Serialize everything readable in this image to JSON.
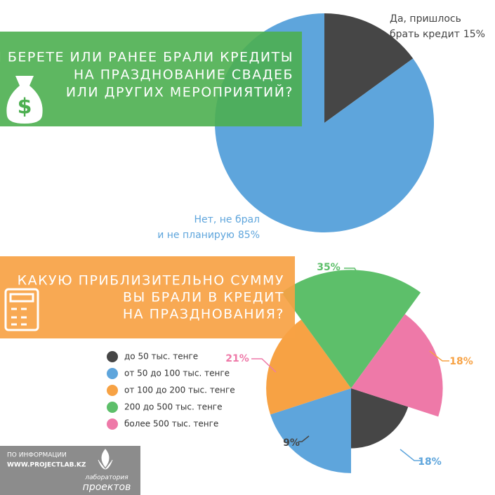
{
  "chart_data": [
    {
      "type": "pie",
      "title": [
        "ВЫ БЕРЕТЕ ИЛИ РАНЕЕ БРАЛИ КРЕДИТЫ",
        "НА ПРАЗДНОВАНИЕ СВАДЕБ",
        "ИЛИ ДРУГИХ МЕРОПРИЯТИЙ?"
      ],
      "categories": [
        [
          "Да, пришлось",
          "брать кредит"
        ],
        [
          "Нет, не брал",
          "и не планирую"
        ]
      ],
      "values": [
        15,
        85
      ],
      "value_labels": [
        "15%",
        "85%"
      ],
      "colors": [
        "#464646",
        "#5ea5dc"
      ]
    },
    {
      "type": "polar-area",
      "title": [
        "КАКУЮ ПРИБЛИЗИТЕЛЬНО СУММУ",
        "ВЫ БРАЛИ В КРЕДИТ",
        "НА ПРАЗДНОВАНИЯ?"
      ],
      "categories": [
        "до 50 тыс. тенге",
        "от 50 до 100 тыс. тенге",
        "от 100 до 200 тыс. тенге",
        "200 до 500 тыс. тенге",
        "более 500 тыс. тенге"
      ],
      "values": [
        9,
        18,
        18,
        35,
        21
      ],
      "value_labels": [
        "9%",
        "18%",
        "18%",
        "35%",
        "21%"
      ],
      "colors": [
        "#464646",
        "#5ea5dc",
        "#f7a244",
        "#5dbf6a",
        "#ee79a8"
      ]
    }
  ],
  "footer": {
    "source": [
      "ПО ИНФОРМАЦИИ",
      "WWW.PROJECTLAB.KZ"
    ],
    "logo": [
      "лаборатория",
      "проектов"
    ]
  }
}
